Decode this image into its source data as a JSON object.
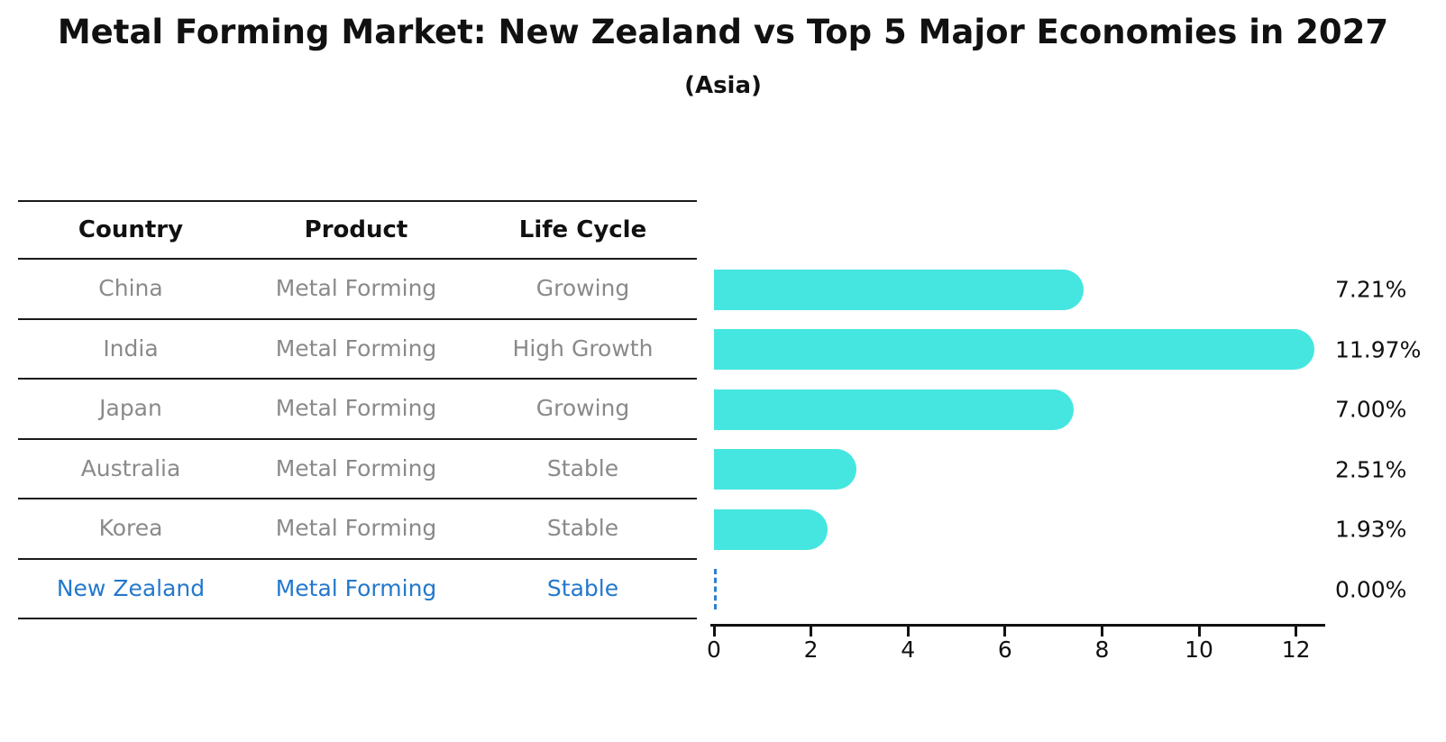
{
  "header": {
    "title": "Metal Forming Market: New Zealand vs Top 5 Major Economies in 2027",
    "subtitle": "(Asia)"
  },
  "table": {
    "columns": [
      "Country",
      "Product",
      "Life Cycle"
    ],
    "rows": [
      {
        "country": "China",
        "product": "Metal Forming",
        "life_cycle": "Growing"
      },
      {
        "country": "India",
        "product": "Metal Forming",
        "life_cycle": "High Growth"
      },
      {
        "country": "Japan",
        "product": "Metal Forming",
        "life_cycle": "Growing"
      },
      {
        "country": "Australia",
        "product": "Metal Forming",
        "life_cycle": "Stable"
      },
      {
        "country": "Korea",
        "product": "Metal Forming",
        "life_cycle": "Stable"
      },
      {
        "country": "New Zealand",
        "product": "Metal Forming",
        "life_cycle": "Stable"
      }
    ]
  },
  "chart_data": {
    "type": "bar",
    "orientation": "horizontal",
    "title": "Metal Forming Market: New Zealand vs Top 5 Major Economies in 2027",
    "subtitle": "(Asia)",
    "categories": [
      "China",
      "India",
      "Japan",
      "Australia",
      "Korea",
      "New Zealand"
    ],
    "values": [
      7.21,
      11.97,
      7.0,
      2.51,
      1.93,
      0.0
    ],
    "value_labels": [
      "7.21%",
      "11.97%",
      "7.00%",
      "2.51%",
      "1.93%",
      "0.00%"
    ],
    "x_ticks": [
      0,
      2,
      4,
      6,
      8,
      10,
      12
    ],
    "xlim": [
      0,
      12.6
    ],
    "grid": false,
    "legend": false,
    "bar_color": "#45e6e0",
    "highlight_color": "#2e7fd0",
    "highlight_index": 5,
    "zero_marker_style": "dashed"
  },
  "colors": {
    "bar_cyan": "#45e6e0",
    "highlight_blue": "#2478cc",
    "line_black": "#1a1a1a",
    "row_text_gray": "#8a8a8a"
  }
}
